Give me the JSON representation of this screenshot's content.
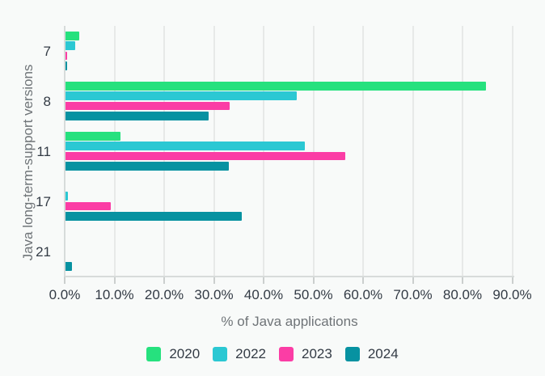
{
  "chart_data": {
    "type": "bar",
    "orientation": "horizontal",
    "xlabel": "% of Java applications",
    "ylabel": "Java long-term-support versions",
    "categories": [
      "7",
      "8",
      "11",
      "17",
      "21"
    ],
    "series": [
      {
        "name": "2020",
        "color": "#26E17E",
        "values": [
          2.7,
          84.5,
          11.0,
          0,
          0
        ]
      },
      {
        "name": "2022",
        "color": "#2BC8D3",
        "values": [
          2.0,
          46.5,
          48.2,
          0.45,
          0
        ]
      },
      {
        "name": "2023",
        "color": "#FB3DA5",
        "values": [
          0.4,
          33.0,
          56.2,
          9.1,
          0
        ]
      },
      {
        "name": "2024",
        "color": "#0792A1",
        "values": [
          0.2,
          28.8,
          32.8,
          35.4,
          1.3
        ]
      }
    ],
    "x_ticks": [
      "0.0%",
      "10.0%",
      "20.0%",
      "30.0%",
      "40.0%",
      "50.0%",
      "60.0%",
      "70.0%",
      "80.0%",
      "90.0%"
    ],
    "xlim": [
      0,
      90
    ],
    "grid": "vertical",
    "legend_position": "bottom",
    "legend_labels": [
      "2020",
      "2022",
      "2023",
      "2024"
    ]
  },
  "colors": {
    "background": "#F8FAF9",
    "gridline": "#E7E9E8",
    "axis_line": "#D7DBDA",
    "tick_mark": "#CBCFCE",
    "text_dark": "#333B45",
    "text_gray": "#6F7478"
  }
}
